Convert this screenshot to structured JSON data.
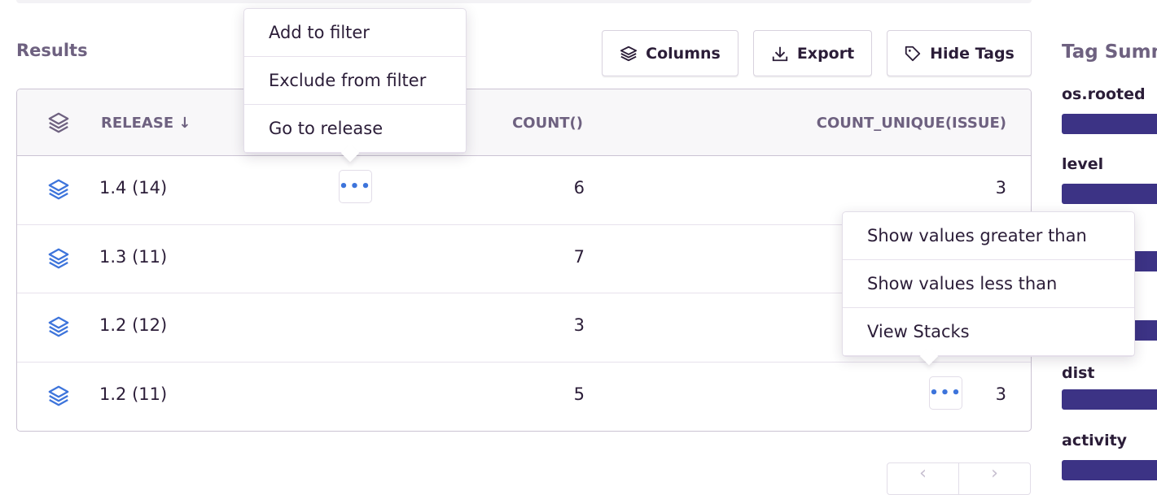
{
  "results": {
    "title": "Results",
    "buttons": {
      "columns": "Columns",
      "export": "Export",
      "hide_tags": "Hide Tags"
    },
    "columns": {
      "release": "RELEASE",
      "sort_icon": "arrow-down",
      "count": "COUNT()",
      "count_unique": "COUNT_UNIQUE(ISSUE)"
    },
    "rows": [
      {
        "release": "1.4 (14)",
        "count": "6",
        "count_unique": "3"
      },
      {
        "release": "1.3 (11)",
        "count": "7",
        "count_unique": ""
      },
      {
        "release": "1.2 (12)",
        "count": "3",
        "count_unique": ""
      },
      {
        "release": "1.2 (11)",
        "count": "5",
        "count_unique": "3"
      }
    ]
  },
  "release_menu": {
    "items": [
      "Add to filter",
      "Exclude from filter",
      "Go to release"
    ]
  },
  "count_menu": {
    "items": [
      "Show values greater than",
      "Show values less than",
      "View Stacks"
    ]
  },
  "tag_summary": {
    "title": "Tag Summary",
    "tags": [
      "os.rooted",
      "level",
      "",
      "",
      "dist",
      "activity"
    ],
    "bar_color": "#3c3385"
  },
  "pagination": {
    "prev": "‹",
    "next": "›"
  }
}
